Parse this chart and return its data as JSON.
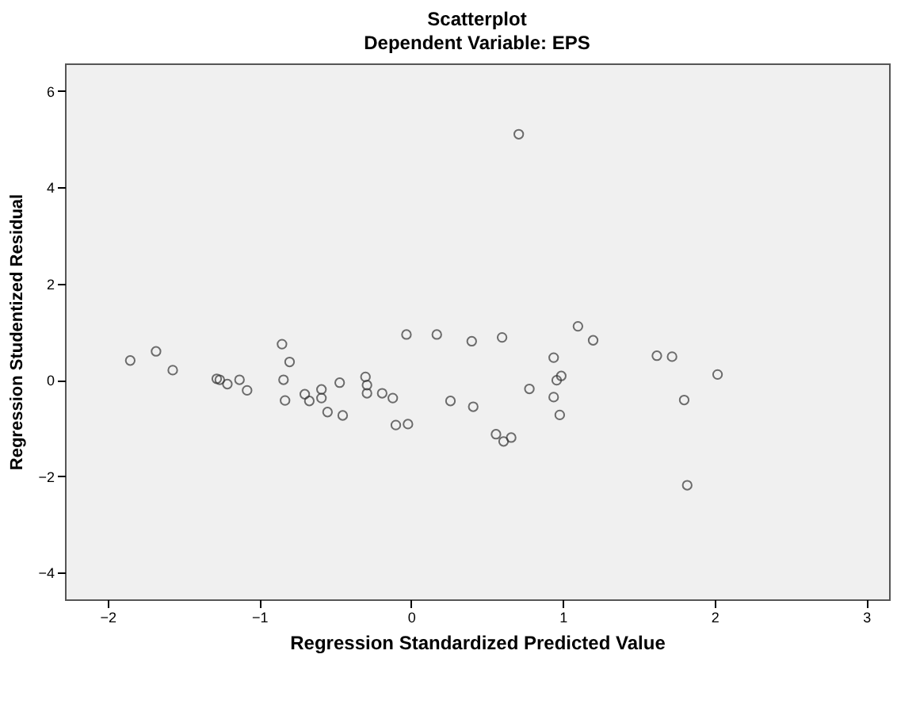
{
  "chart_data": {
    "type": "scatter",
    "title": "Scatterplot",
    "subtitle": "Dependent Variable: EPS",
    "xlabel": "Regression Standardized Predicted Value",
    "ylabel": "Regression Studentized Residual",
    "xlim": [
      -2.28,
      3.15
    ],
    "ylim": [
      -4.56,
      6.57
    ],
    "xticks": [
      -2,
      -1,
      0,
      1,
      2,
      3
    ],
    "yticks": [
      -4,
      -2,
      0,
      2,
      4,
      6
    ],
    "grid": false,
    "marker": "circle",
    "series": [
      {
        "color": "#333333",
        "x": [
          -1.85,
          -1.68,
          -1.57,
          -1.28,
          -1.26,
          -1.21,
          -1.13,
          -1.08,
          -0.85,
          -0.84,
          -0.83,
          -0.8,
          -0.7,
          -0.67,
          -0.59,
          -0.59,
          -0.55,
          -0.47,
          -0.45,
          -0.3,
          -0.29,
          -0.29,
          -0.19,
          -0.12,
          -0.1,
          -0.03,
          -0.02,
          0.17,
          0.26,
          0.4,
          0.41,
          0.56,
          0.6,
          0.61,
          0.66,
          0.71,
          0.78,
          0.94,
          0.94,
          0.96,
          0.99,
          0.98,
          1.1,
          1.2,
          1.62,
          1.72,
          1.8,
          1.82,
          2.02
        ],
        "values": [
          0.4,
          0.59,
          0.2,
          0.02,
          0.0,
          -0.09,
          0.0,
          -0.22,
          0.74,
          0.0,
          -0.43,
          0.37,
          -0.3,
          -0.44,
          -0.2,
          -0.38,
          -0.67,
          -0.06,
          -0.74,
          0.06,
          -0.11,
          -0.28,
          -0.28,
          -0.38,
          -0.94,
          0.94,
          -0.92,
          0.94,
          -0.44,
          0.8,
          -0.56,
          -1.13,
          0.88,
          -1.28,
          -1.2,
          5.1,
          -0.19,
          0.46,
          -0.36,
          -0.01,
          0.08,
          -0.73,
          1.11,
          0.82,
          0.5,
          0.48,
          -0.42,
          -2.19,
          0.11
        ]
      }
    ]
  }
}
